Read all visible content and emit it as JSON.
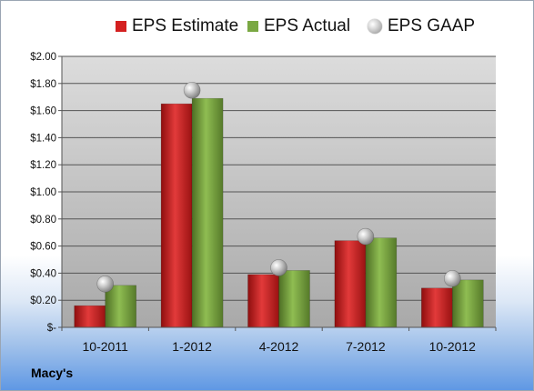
{
  "company": "Macy's",
  "legend": [
    {
      "label": "EPS Estimate",
      "color": "#d42020",
      "marker": "square"
    },
    {
      "label": "EPS Actual",
      "color": "#7aa843",
      "marker": "square"
    },
    {
      "label": "EPS GAAP",
      "color": "#bfbfbf",
      "marker": "sphere"
    }
  ],
  "chart_data": {
    "type": "bar",
    "categories": [
      "10-2011",
      "1-2012",
      "4-2012",
      "7-2012",
      "10-2012"
    ],
    "series": [
      {
        "name": "EPS Estimate",
        "type": "bar",
        "color": "#d42020",
        "values": [
          0.16,
          1.65,
          0.39,
          0.64,
          0.29
        ]
      },
      {
        "name": "EPS Actual",
        "type": "bar",
        "color": "#7aa843",
        "values": [
          0.31,
          1.69,
          0.42,
          0.66,
          0.35
        ]
      },
      {
        "name": "EPS GAAP",
        "type": "marker",
        "color": "#bfbfbf",
        "values": [
          0.32,
          1.75,
          0.44,
          0.67,
          0.36
        ]
      }
    ],
    "ylim": [
      0,
      2.0
    ],
    "yticks": [
      0,
      0.2,
      0.4,
      0.6,
      0.8,
      1.0,
      1.2,
      1.4,
      1.6,
      1.8,
      2.0
    ],
    "ytick_labels": [
      "$-",
      "$0.20",
      "$0.40",
      "$0.60",
      "$0.80",
      "$1.00",
      "$1.20",
      "$1.40",
      "$1.60",
      "$1.80",
      "$2.00"
    ],
    "grid": true,
    "legend_position": "top"
  }
}
